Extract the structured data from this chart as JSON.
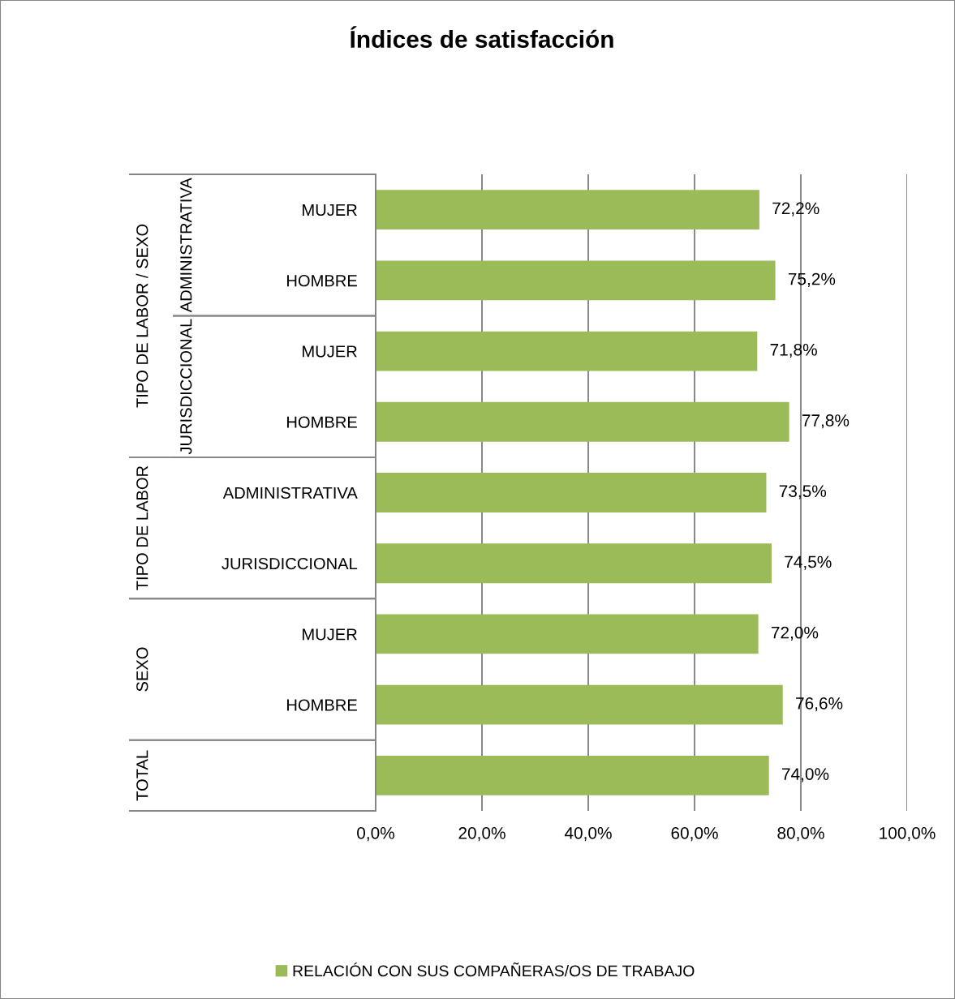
{
  "chart_data": {
    "type": "bar",
    "orientation": "horizontal",
    "title": "Índices de satisfacción",
    "categories": [
      "MUJER",
      "HOMBRE",
      "MUJER",
      "HOMBRE",
      "ADMINISTRATIVA",
      "JURISDICCIONAL",
      "MUJER",
      "HOMBRE",
      null
    ],
    "series": [
      {
        "name": "RELACIÓN CON SUS COMPAÑERAS/OS DE TRABAJO",
        "color": "#9bbb59",
        "values": [
          72.2,
          75.2,
          71.8,
          77.8,
          73.5,
          74.5,
          72.0,
          76.6,
          74.0
        ],
        "value_labels": [
          "72,2%",
          "75,2%",
          "71,8%",
          "77,8%",
          "73,5%",
          "74,5%",
          "72,0%",
          "76,6%",
          "74,0%"
        ]
      }
    ],
    "xlim": [
      0,
      100
    ],
    "xticks": [
      {
        "value": 0,
        "label": "0,0%"
      },
      {
        "value": 20,
        "label": "20,0%"
      },
      {
        "value": 40,
        "label": "40,0%"
      },
      {
        "value": 60,
        "label": "60,0%"
      },
      {
        "value": 80,
        "label": "80,0%"
      },
      {
        "value": 100,
        "label": "100,0%"
      }
    ],
    "grid": "x",
    "legend": "bottom",
    "annotations": [
      "TIPO DE LABOR / SEXO",
      "ADMINISTRATIVA",
      "JURISDICCIONAL",
      "TIPO DE LABOR",
      "SEXO",
      "TOTAL"
    ]
  }
}
